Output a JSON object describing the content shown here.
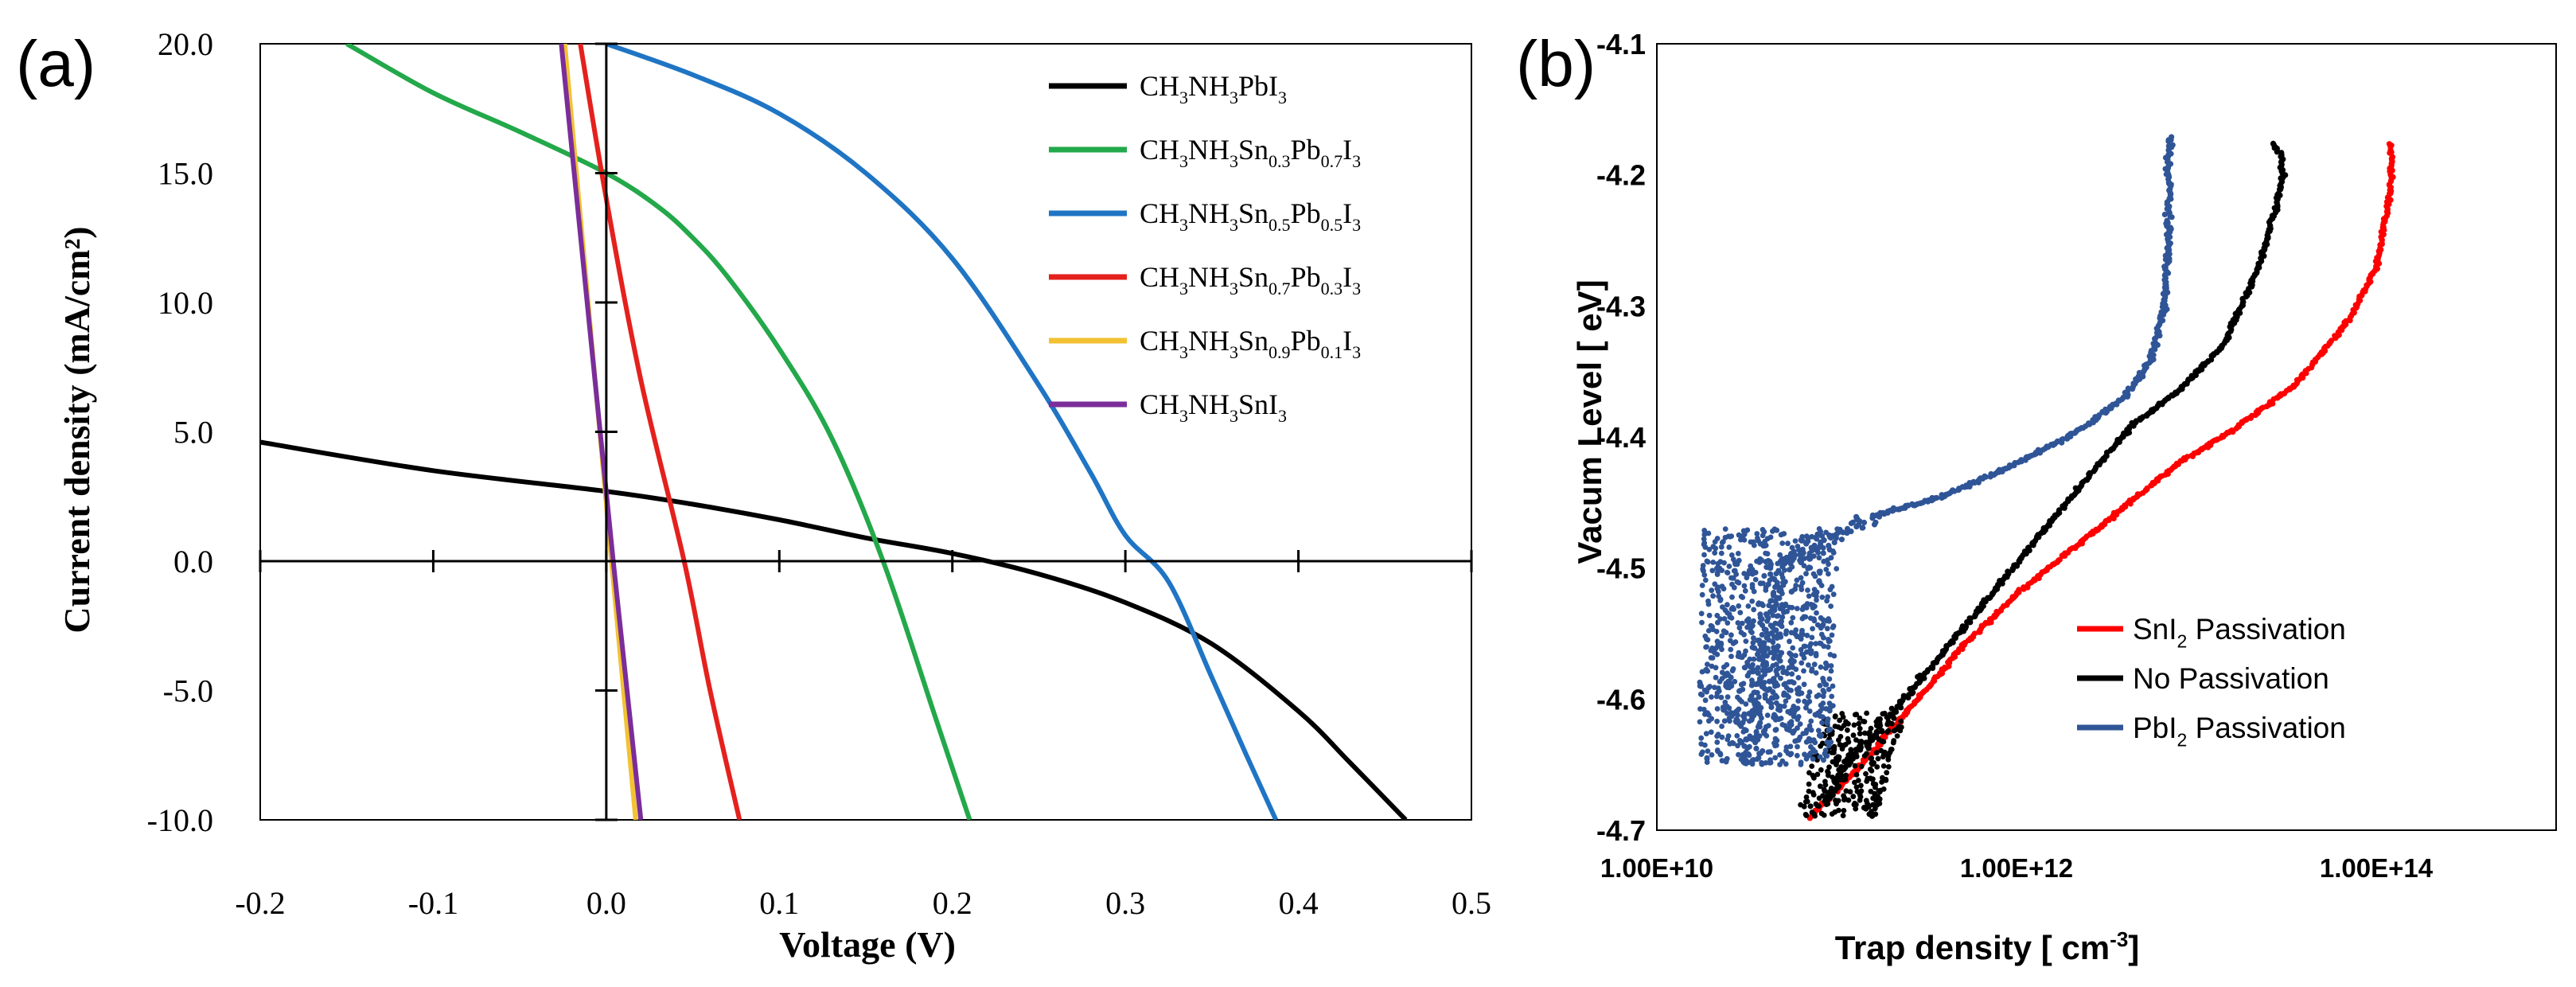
{
  "chart_data": [
    {
      "type": "line",
      "panel_label": "(a)",
      "xlabel": "Voltage (V)",
      "ylabel": "Current density (mA/cm²)",
      "xlim": [
        -0.2,
        0.5
      ],
      "ylim": [
        -10,
        20
      ],
      "x_ticks": [
        -0.2,
        -0.1,
        0.0,
        0.1,
        0.2,
        0.3,
        0.4,
        0.5
      ],
      "x_tick_labels": [
        "-0.2",
        "-0.1",
        "0.0",
        "0.1",
        "0.2",
        "0.3",
        "0.4",
        "0.5"
      ],
      "y_ticks": [
        -10,
        -5,
        0,
        5,
        10,
        15,
        20
      ],
      "y_tick_labels": [
        "-10.0",
        "-5.0",
        "0.0",
        "5.0",
        "10.0",
        "15.0",
        "20.0"
      ],
      "legend_position": "top-right",
      "series": [
        {
          "name": "CH3NH3PbI3",
          "label_parts": [
            [
              "CH",
              ""
            ],
            [
              "3",
              "sub"
            ],
            [
              "NH",
              ""
            ],
            [
              "3",
              "sub"
            ],
            [
              "PbI",
              ""
            ],
            [
              "3",
              "sub"
            ]
          ],
          "color": "#000000",
          "x": [
            -0.2,
            -0.1,
            0.0,
            0.05,
            0.1,
            0.15,
            0.2,
            0.25,
            0.3,
            0.35,
            0.4,
            0.43,
            0.462
          ],
          "y": [
            4.6,
            3.5,
            2.7,
            2.2,
            1.6,
            0.9,
            0.3,
            -0.5,
            -1.6,
            -3.2,
            -5.8,
            -7.8,
            -10.0
          ]
        },
        {
          "name": "CH3NH3Sn0.3Pb0.7I3",
          "label_parts": [
            [
              "CH",
              ""
            ],
            [
              "3",
              "sub"
            ],
            [
              "NH",
              ""
            ],
            [
              "3",
              "sub"
            ],
            [
              "Sn",
              ""
            ],
            [
              "0.3",
              "sub"
            ],
            [
              "Pb",
              ""
            ],
            [
              "0.7",
              "sub"
            ],
            [
              "I",
              ""
            ],
            [
              "3",
              "sub"
            ]
          ],
          "color": "#23a84a",
          "x": [
            -0.15,
            -0.1,
            -0.05,
            0.0,
            0.03,
            0.05,
            0.07,
            0.1,
            0.13,
            0.16,
            0.19,
            0.21
          ],
          "y": [
            20.0,
            18.1,
            16.6,
            15.0,
            13.7,
            12.5,
            11.0,
            8.2,
            4.8,
            0.0,
            -6.0,
            -10.0
          ]
        },
        {
          "name": "CH3NH3Sn0.5Pb0.5I3",
          "label_parts": [
            [
              "CH",
              ""
            ],
            [
              "3",
              "sub"
            ],
            [
              "NH",
              ""
            ],
            [
              "3",
              "sub"
            ],
            [
              "Sn",
              ""
            ],
            [
              "0.5",
              "sub"
            ],
            [
              "Pb",
              ""
            ],
            [
              "0.5",
              "sub"
            ],
            [
              "I",
              ""
            ],
            [
              "3",
              "sub"
            ]
          ],
          "color": "#1f75c4",
          "x": [
            0.0,
            0.05,
            0.1,
            0.15,
            0.2,
            0.25,
            0.28,
            0.3,
            0.325,
            0.35,
            0.37,
            0.387
          ],
          "y": [
            20.0,
            18.8,
            17.3,
            15.0,
            11.7,
            6.8,
            3.4,
            1.0,
            -0.8,
            -4.5,
            -7.5,
            -10.0
          ]
        },
        {
          "name": "CH3NH3Sn0.7Pb0.3I3",
          "label_parts": [
            [
              "CH",
              ""
            ],
            [
              "3",
              "sub"
            ],
            [
              "NH",
              ""
            ],
            [
              "3",
              "sub"
            ],
            [
              "Sn",
              ""
            ],
            [
              "0.7",
              "sub"
            ],
            [
              "Pb",
              ""
            ],
            [
              "0.3",
              "sub"
            ],
            [
              "I",
              ""
            ],
            [
              "3",
              "sub"
            ]
          ],
          "color": "#e4211d",
          "x": [
            -0.015,
            0.0,
            0.02,
            0.045,
            0.06,
            0.077
          ],
          "y": [
            20.0,
            14.0,
            7.0,
            0.0,
            -5.0,
            -10.0
          ]
        },
        {
          "name": "CH3NH3Sn0.9Pb0.1I3",
          "label_parts": [
            [
              "CH",
              ""
            ],
            [
              "3",
              "sub"
            ],
            [
              "NH",
              ""
            ],
            [
              "3",
              "sub"
            ],
            [
              "Sn",
              ""
            ],
            [
              "0.9",
              "sub"
            ],
            [
              "Pb",
              ""
            ],
            [
              "0.1",
              "sub"
            ],
            [
              "I",
              ""
            ],
            [
              "3",
              "sub"
            ]
          ],
          "color": "#f2c232",
          "x": [
            -0.024,
            0.003,
            0.017
          ],
          "y": [
            20.0,
            0.0,
            -10.0
          ]
        },
        {
          "name": "CH3NH3SnI3",
          "label_parts": [
            [
              "CH",
              ""
            ],
            [
              "3",
              "sub"
            ],
            [
              "NH",
              ""
            ],
            [
              "3",
              "sub"
            ],
            [
              "SnI",
              ""
            ],
            [
              "3",
              "sub"
            ]
          ],
          "color": "#7b2d9a",
          "x": [
            -0.026,
            0.004,
            0.02
          ],
          "y": [
            20.0,
            0.0,
            -10.0
          ]
        }
      ]
    },
    {
      "type": "scatter",
      "panel_label": "(b)",
      "xlabel_parts": [
        [
          "Trap density [ cm",
          ""
        ],
        [
          "-3",
          "sup"
        ],
        [
          "]",
          ""
        ]
      ],
      "ylabel": "Vacum Level  [ eV]",
      "x_scale": "log",
      "xlim_log10": [
        10,
        15
      ],
      "ylim": [
        -4.7,
        -4.1
      ],
      "x_ticks_log10": [
        10,
        12,
        14
      ],
      "x_tick_labels": [
        "1.00E+10",
        "1.00E+12",
        "1.00E+14"
      ],
      "y_ticks": [
        -4.7,
        -4.6,
        -4.5,
        -4.4,
        -4.3,
        -4.2,
        -4.1
      ],
      "y_tick_labels": [
        "-4.7",
        "-4.6",
        "-4.5",
        "-4.4",
        "-4.3",
        "-4.2",
        "-4.1"
      ],
      "legend_position": "bottom-right",
      "series": [
        {
          "name": "SnI2 Passivation",
          "label_parts": [
            [
              "SnI",
              ""
            ],
            [
              "2",
              "sub"
            ],
            [
              " Passivation",
              ""
            ]
          ],
          "color": "#ff0000",
          "log10_x": [
            10.85,
            11.0,
            11.2,
            11.45,
            11.7,
            12.0,
            12.45,
            12.9,
            13.2,
            13.55,
            13.85,
            14.0,
            14.07,
            14.09,
            14.07
          ],
          "y": [
            -4.69,
            -4.67,
            -4.64,
            -4.6,
            -4.56,
            -4.52,
            -4.47,
            -4.42,
            -4.395,
            -4.36,
            -4.31,
            -4.27,
            -4.22,
            -4.19,
            -4.175
          ]
        },
        {
          "name": "No Passivation",
          "label_parts": [
            [
              "No Passivation",
              ""
            ]
          ],
          "color": "#000000",
          "log10_x": [
            10.95,
            11.05,
            11.25,
            11.5,
            11.8,
            12.1,
            12.4,
            12.65,
            12.9,
            13.15,
            13.35,
            13.45,
            13.48,
            13.47,
            13.42
          ],
          "y": [
            -4.68,
            -4.65,
            -4.62,
            -4.58,
            -4.53,
            -4.48,
            -4.43,
            -4.39,
            -4.365,
            -4.33,
            -4.27,
            -4.22,
            -4.2,
            -4.185,
            -4.175
          ]
        },
        {
          "name": "PbI2 Passivation",
          "label_parts": [
            [
              "PbI",
              ""
            ],
            [
              "2",
              "sub"
            ],
            [
              " Passivation",
              ""
            ]
          ],
          "color": "#2f5597",
          "log10_x": [
            10.55,
            10.58,
            10.6,
            10.62,
            10.63,
            10.65,
            11.2,
            11.6,
            12.0,
            12.35,
            12.6,
            12.75,
            12.82,
            12.84,
            12.85,
            12.84,
            12.86
          ],
          "y": [
            -4.65,
            -4.62,
            -4.59,
            -4.56,
            -4.53,
            -4.5,
            -4.46,
            -4.445,
            -4.42,
            -4.395,
            -4.37,
            -4.34,
            -4.3,
            -4.26,
            -4.22,
            -4.19,
            -4.17
          ]
        }
      ]
    }
  ]
}
